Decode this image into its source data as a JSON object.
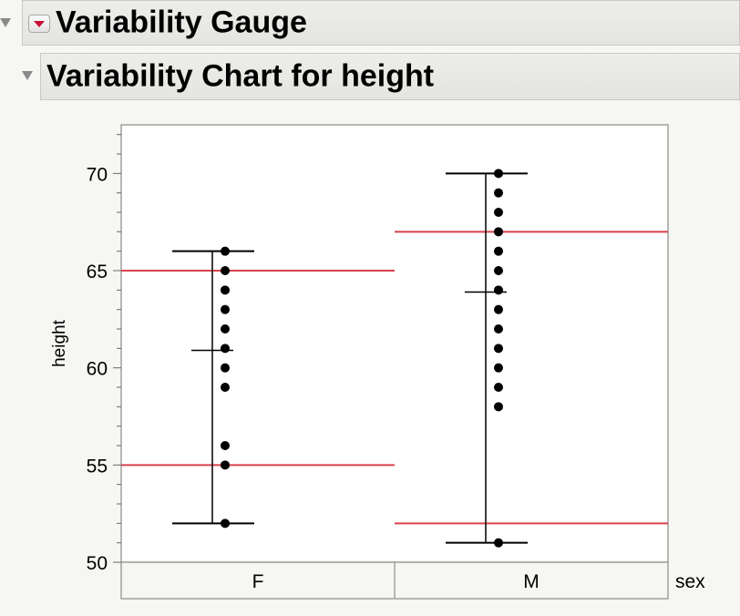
{
  "outline": {
    "gauge_title": "Variability Gauge",
    "chart_title": "Variability Chart for height"
  },
  "colors": {
    "control_limit": "#d9414c",
    "points": "#000000",
    "frame": "#a0a0a0"
  },
  "icons": {
    "outline_toggle": "disclosure-triangle-icon",
    "menu": "red-triangle-menu-icon"
  },
  "chart_data": {
    "type": "scatter",
    "ylabel": "height",
    "xlabel": "sex",
    "ylim": [
      50,
      72.5
    ],
    "yticks": [
      50,
      55,
      60,
      65,
      70
    ],
    "categories": [
      "F",
      "M"
    ],
    "groups": [
      {
        "category": "F",
        "points": [
          66,
          65,
          64,
          63,
          62,
          61,
          60,
          59,
          56,
          55,
          52
        ],
        "range_min": 52,
        "range_max": 66,
        "mean": 60.9,
        "upper_limit": 65,
        "lower_limit": 55
      },
      {
        "category": "M",
        "points": [
          70,
          69,
          68,
          67,
          66,
          65,
          64,
          63,
          62,
          61,
          60,
          59,
          58,
          51
        ],
        "range_min": 51,
        "range_max": 70,
        "mean": 63.9,
        "upper_limit": 67,
        "lower_limit": 52
      }
    ]
  }
}
